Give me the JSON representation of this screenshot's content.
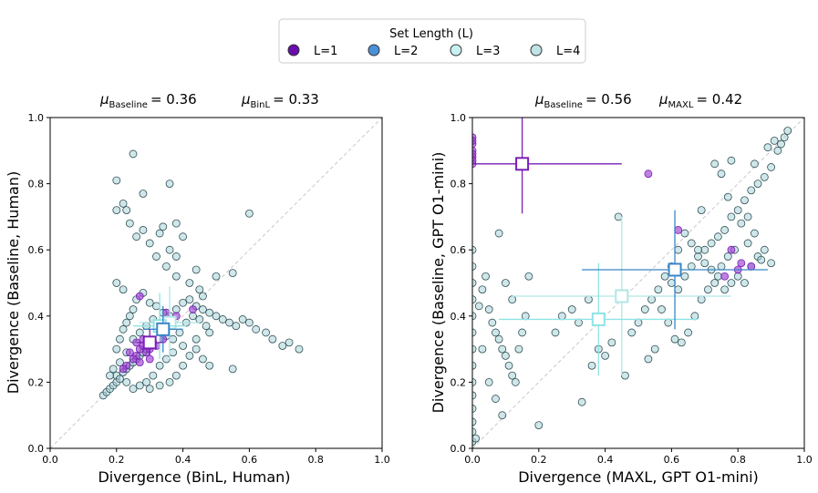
{
  "legend": {
    "title": "Set Length (L)",
    "items": [
      {
        "label": "L=1",
        "color": "#6a0dad"
      },
      {
        "label": "L=2",
        "color": "#4a90d9"
      },
      {
        "label": "L=3",
        "color": "#c8f2f2"
      },
      {
        "label": "L=4",
        "color": "#bfe3e6"
      }
    ]
  },
  "chart_data": [
    {
      "type": "scatter",
      "xlabel": "Divergence (BinL, Human)",
      "ylabel": "Divergence (Baseline, Human)",
      "xlim": [
        0,
        1
      ],
      "ylim": [
        0,
        1
      ],
      "xticks": [
        "0.0",
        "0.2",
        "0.4",
        "0.6",
        "0.8",
        "1.0"
      ],
      "yticks": [
        "0.0",
        "0.2",
        "0.4",
        "0.6",
        "0.8",
        "1.0"
      ],
      "mu": {
        "baseline_prefix": "μ",
        "baseline_sub": "Baseline",
        "baseline_value": "= 0.36",
        "method_prefix": "μ",
        "method_sub": "BinL",
        "method_value": "= 0.33"
      },
      "points_l4": [
        [
          0.16,
          0.16
        ],
        [
          0.17,
          0.17
        ],
        [
          0.18,
          0.18
        ],
        [
          0.19,
          0.19
        ],
        [
          0.2,
          0.2
        ],
        [
          0.2,
          0.22
        ],
        [
          0.21,
          0.21
        ],
        [
          0.22,
          0.23
        ],
        [
          0.23,
          0.24
        ],
        [
          0.24,
          0.25
        ],
        [
          0.25,
          0.26
        ],
        [
          0.26,
          0.27
        ],
        [
          0.27,
          0.28
        ],
        [
          0.28,
          0.29
        ],
        [
          0.29,
          0.3
        ],
        [
          0.3,
          0.31
        ],
        [
          0.2,
          0.3
        ],
        [
          0.21,
          0.33
        ],
        [
          0.22,
          0.36
        ],
        [
          0.23,
          0.38
        ],
        [
          0.24,
          0.4
        ],
        [
          0.25,
          0.42
        ],
        [
          0.2,
          0.5
        ],
        [
          0.22,
          0.48
        ],
        [
          0.26,
          0.45
        ],
        [
          0.28,
          0.47
        ],
        [
          0.3,
          0.44
        ],
        [
          0.32,
          0.43
        ],
        [
          0.34,
          0.41
        ],
        [
          0.36,
          0.4
        ],
        [
          0.38,
          0.42
        ],
        [
          0.4,
          0.44
        ],
        [
          0.42,
          0.45
        ],
        [
          0.44,
          0.43
        ],
        [
          0.46,
          0.42
        ],
        [
          0.48,
          0.41
        ],
        [
          0.5,
          0.4
        ],
        [
          0.52,
          0.39
        ],
        [
          0.54,
          0.38
        ],
        [
          0.56,
          0.37
        ],
        [
          0.58,
          0.39
        ],
        [
          0.6,
          0.38
        ],
        [
          0.62,
          0.36
        ],
        [
          0.65,
          0.35
        ],
        [
          0.67,
          0.33
        ],
        [
          0.7,
          0.31
        ],
        [
          0.72,
          0.32
        ],
        [
          0.75,
          0.3
        ],
        [
          0.6,
          0.71
        ],
        [
          0.55,
          0.53
        ],
        [
          0.5,
          0.52
        ],
        [
          0.45,
          0.48
        ],
        [
          0.42,
          0.5
        ],
        [
          0.38,
          0.52
        ],
        [
          0.35,
          0.55
        ],
        [
          0.32,
          0.58
        ],
        [
          0.3,
          0.62
        ],
        [
          0.33,
          0.65
        ],
        [
          0.36,
          0.6
        ],
        [
          0.34,
          0.67
        ],
        [
          0.38,
          0.68
        ],
        [
          0.28,
          0.66
        ],
        [
          0.26,
          0.64
        ],
        [
          0.24,
          0.68
        ],
        [
          0.23,
          0.72
        ],
        [
          0.2,
          0.72
        ],
        [
          0.22,
          0.74
        ],
        [
          0.25,
          0.89
        ],
        [
          0.2,
          0.81
        ],
        [
          0.36,
          0.8
        ],
        [
          0.28,
          0.77
        ],
        [
          0.4,
          0.64
        ],
        [
          0.38,
          0.58
        ],
        [
          0.44,
          0.54
        ],
        [
          0.46,
          0.46
        ],
        [
          0.48,
          0.35
        ],
        [
          0.44,
          0.33
        ],
        [
          0.4,
          0.31
        ],
        [
          0.37,
          0.29
        ],
        [
          0.35,
          0.27
        ],
        [
          0.33,
          0.25
        ],
        [
          0.31,
          0.22
        ],
        [
          0.29,
          0.2
        ],
        [
          0.27,
          0.19
        ],
        [
          0.25,
          0.18
        ],
        [
          0.23,
          0.2
        ],
        [
          0.3,
          0.18
        ],
        [
          0.33,
          0.19
        ],
        [
          0.36,
          0.2
        ],
        [
          0.38,
          0.22
        ],
        [
          0.4,
          0.25
        ],
        [
          0.42,
          0.28
        ],
        [
          0.44,
          0.3
        ],
        [
          0.46,
          0.27
        ],
        [
          0.48,
          0.25
        ],
        [
          0.55,
          0.24
        ],
        [
          0.19,
          0.24
        ],
        [
          0.18,
          0.22
        ],
        [
          0.21,
          0.26
        ],
        [
          0.23,
          0.29
        ],
        [
          0.25,
          0.33
        ],
        [
          0.27,
          0.35
        ],
        [
          0.29,
          0.37
        ],
        [
          0.31,
          0.39
        ],
        [
          0.33,
          0.36
        ],
        [
          0.35,
          0.34
        ],
        [
          0.37,
          0.33
        ],
        [
          0.39,
          0.35
        ],
        [
          0.41,
          0.38
        ],
        [
          0.43,
          0.4
        ],
        [
          0.45,
          0.39
        ],
        [
          0.47,
          0.37
        ]
      ],
      "points_l1": [
        [
          0.26,
          0.28
        ],
        [
          0.27,
          0.3
        ],
        [
          0.28,
          0.31
        ],
        [
          0.29,
          0.29
        ],
        [
          0.3,
          0.3
        ],
        [
          0.25,
          0.27
        ],
        [
          0.24,
          0.29
        ],
        [
          0.31,
          0.32
        ],
        [
          0.32,
          0.31
        ],
        [
          0.27,
          0.26
        ],
        [
          0.23,
          0.25
        ],
        [
          0.28,
          0.33
        ],
        [
          0.3,
          0.27
        ],
        [
          0.26,
          0.32
        ],
        [
          0.22,
          0.24
        ],
        [
          0.34,
          0.33
        ],
        [
          0.27,
          0.46
        ],
        [
          0.35,
          0.41
        ],
        [
          0.43,
          0.42
        ],
        [
          0.38,
          0.4
        ]
      ],
      "means": [
        {
          "level": "L=1",
          "x": 0.3,
          "y": 0.32,
          "xerr": 0.04,
          "yerr": 0.04
        },
        {
          "level": "L=2",
          "x": 0.34,
          "y": 0.36,
          "xerr": 0.06,
          "yerr": 0.07
        },
        {
          "level": "L=3",
          "x": 0.33,
          "y": 0.37,
          "xerr": 0.08,
          "yerr": 0.1
        },
        {
          "level": "L=4",
          "x": 0.36,
          "y": 0.38,
          "xerr": 0.09,
          "yerr": 0.11
        }
      ]
    },
    {
      "type": "scatter",
      "xlabel": "Divergence (MAXL, GPT O1-mini)",
      "ylabel": "Divergence (Baseline, GPT O1-mini)",
      "xlim": [
        0,
        1
      ],
      "ylim": [
        0,
        1
      ],
      "xticks": [
        "0.0",
        "0.2",
        "0.4",
        "0.6",
        "0.8",
        "1.0"
      ],
      "yticks": [
        "0.0",
        "0.2",
        "0.4",
        "0.6",
        "0.8",
        "1.0"
      ],
      "mu": {
        "baseline_prefix": "μ",
        "baseline_sub": "Baseline",
        "baseline_value": "= 0.56",
        "method_prefix": "μ",
        "method_sub": "MAXL",
        "method_value": "= 0.42"
      },
      "points_l4": [
        [
          0.0,
          0.02
        ],
        [
          0.0,
          0.05
        ],
        [
          0.0,
          0.08
        ],
        [
          0.0,
          0.12
        ],
        [
          0.0,
          0.16
        ],
        [
          0.0,
          0.2
        ],
        [
          0.0,
          0.25
        ],
        [
          0.0,
          0.3
        ],
        [
          0.0,
          0.35
        ],
        [
          0.0,
          0.4
        ],
        [
          0.0,
          0.45
        ],
        [
          0.0,
          0.5
        ],
        [
          0.0,
          0.55
        ],
        [
          0.0,
          0.6
        ],
        [
          0.01,
          0.03
        ],
        [
          0.02,
          0.43
        ],
        [
          0.03,
          0.48
        ],
        [
          0.04,
          0.52
        ],
        [
          0.05,
          0.42
        ],
        [
          0.06,
          0.38
        ],
        [
          0.07,
          0.35
        ],
        [
          0.08,
          0.33
        ],
        [
          0.09,
          0.3
        ],
        [
          0.1,
          0.28
        ],
        [
          0.11,
          0.25
        ],
        [
          0.12,
          0.22
        ],
        [
          0.13,
          0.2
        ],
        [
          0.14,
          0.3
        ],
        [
          0.15,
          0.35
        ],
        [
          0.16,
          0.4
        ],
        [
          0.17,
          0.52
        ],
        [
          0.08,
          0.65
        ],
        [
          0.1,
          0.5
        ],
        [
          0.12,
          0.45
        ],
        [
          0.03,
          0.3
        ],
        [
          0.05,
          0.2
        ],
        [
          0.07,
          0.15
        ],
        [
          0.09,
          0.1
        ],
        [
          0.2,
          0.07
        ],
        [
          0.25,
          0.35
        ],
        [
          0.27,
          0.4
        ],
        [
          0.3,
          0.42
        ],
        [
          0.32,
          0.38
        ],
        [
          0.35,
          0.45
        ],
        [
          0.33,
          0.14
        ],
        [
          0.36,
          0.25
        ],
        [
          0.38,
          0.3
        ],
        [
          0.4,
          0.28
        ],
        [
          0.42,
          0.32
        ],
        [
          0.44,
          0.7
        ],
        [
          0.46,
          0.22
        ],
        [
          0.48,
          0.35
        ],
        [
          0.5,
          0.38
        ],
        [
          0.52,
          0.42
        ],
        [
          0.54,
          0.45
        ],
        [
          0.56,
          0.48
        ],
        [
          0.58,
          0.52
        ],
        [
          0.6,
          0.5
        ],
        [
          0.62,
          0.48
        ],
        [
          0.64,
          0.52
        ],
        [
          0.66,
          0.55
        ],
        [
          0.68,
          0.58
        ],
        [
          0.7,
          0.6
        ],
        [
          0.72,
          0.62
        ],
        [
          0.74,
          0.64
        ],
        [
          0.76,
          0.66
        ],
        [
          0.78,
          0.7
        ],
        [
          0.8,
          0.72
        ],
        [
          0.82,
          0.75
        ],
        [
          0.84,
          0.78
        ],
        [
          0.86,
          0.8
        ],
        [
          0.88,
          0.82
        ],
        [
          0.9,
          0.85
        ],
        [
          0.92,
          0.9
        ],
        [
          0.93,
          0.92
        ],
        [
          0.94,
          0.94
        ],
        [
          0.95,
          0.96
        ],
        [
          0.91,
          0.93
        ],
        [
          0.89,
          0.91
        ],
        [
          0.85,
          0.86
        ],
        [
          0.83,
          0.7
        ],
        [
          0.81,
          0.68
        ],
        [
          0.79,
          0.6
        ],
        [
          0.77,
          0.58
        ],
        [
          0.75,
          0.55
        ],
        [
          0.73,
          0.5
        ],
        [
          0.71,
          0.48
        ],
        [
          0.69,
          0.45
        ],
        [
          0.67,
          0.4
        ],
        [
          0.65,
          0.35
        ],
        [
          0.63,
          0.32
        ],
        [
          0.61,
          0.33
        ],
        [
          0.59,
          0.38
        ],
        [
          0.57,
          0.42
        ],
        [
          0.55,
          0.3
        ],
        [
          0.53,
          0.27
        ],
        [
          0.8,
          0.52
        ],
        [
          0.82,
          0.5
        ],
        [
          0.84,
          0.55
        ],
        [
          0.86,
          0.58
        ],
        [
          0.88,
          0.6
        ],
        [
          0.9,
          0.56
        ],
        [
          0.78,
          0.5
        ],
        [
          0.76,
          0.48
        ],
        [
          0.74,
          0.52
        ],
        [
          0.72,
          0.54
        ],
        [
          0.7,
          0.56
        ],
        [
          0.68,
          0.6
        ],
        [
          0.66,
          0.62
        ],
        [
          0.64,
          0.65
        ],
        [
          0.62,
          0.6
        ],
        [
          0.6,
          0.55
        ],
        [
          0.75,
          0.83
        ],
        [
          0.78,
          0.87
        ],
        [
          0.73,
          0.86
        ],
        [
          0.77,
          0.76
        ],
        [
          0.69,
          0.72
        ],
        [
          0.83,
          0.62
        ],
        [
          0.85,
          0.65
        ],
        [
          0.87,
          0.57
        ]
      ],
      "points_l1": [
        [
          0.0,
          0.86
        ],
        [
          0.0,
          0.88
        ],
        [
          0.0,
          0.9
        ],
        [
          0.0,
          0.92
        ],
        [
          0.0,
          0.94
        ],
        [
          0.0,
          0.87
        ],
        [
          0.0,
          0.89
        ],
        [
          0.0,
          0.93
        ],
        [
          0.53,
          0.83
        ],
        [
          0.8,
          0.54
        ],
        [
          0.81,
          0.56
        ],
        [
          0.78,
          0.6
        ],
        [
          0.84,
          0.55
        ],
        [
          0.62,
          0.66
        ],
        [
          0.76,
          0.52
        ]
      ],
      "means": [
        {
          "level": "L=1",
          "x": 0.15,
          "y": 0.86,
          "xerr": 0.3,
          "yerr": 0.15
        },
        {
          "level": "L=2",
          "x": 0.61,
          "y": 0.54,
          "xerr": 0.28,
          "yerr": 0.18
        },
        {
          "level": "L=3",
          "x": 0.38,
          "y": 0.39,
          "xerr": 0.3,
          "yerr": 0.17
        },
        {
          "level": "L=4",
          "x": 0.45,
          "y": 0.46,
          "xerr": 0.33,
          "yerr": 0.24
        }
      ]
    }
  ]
}
